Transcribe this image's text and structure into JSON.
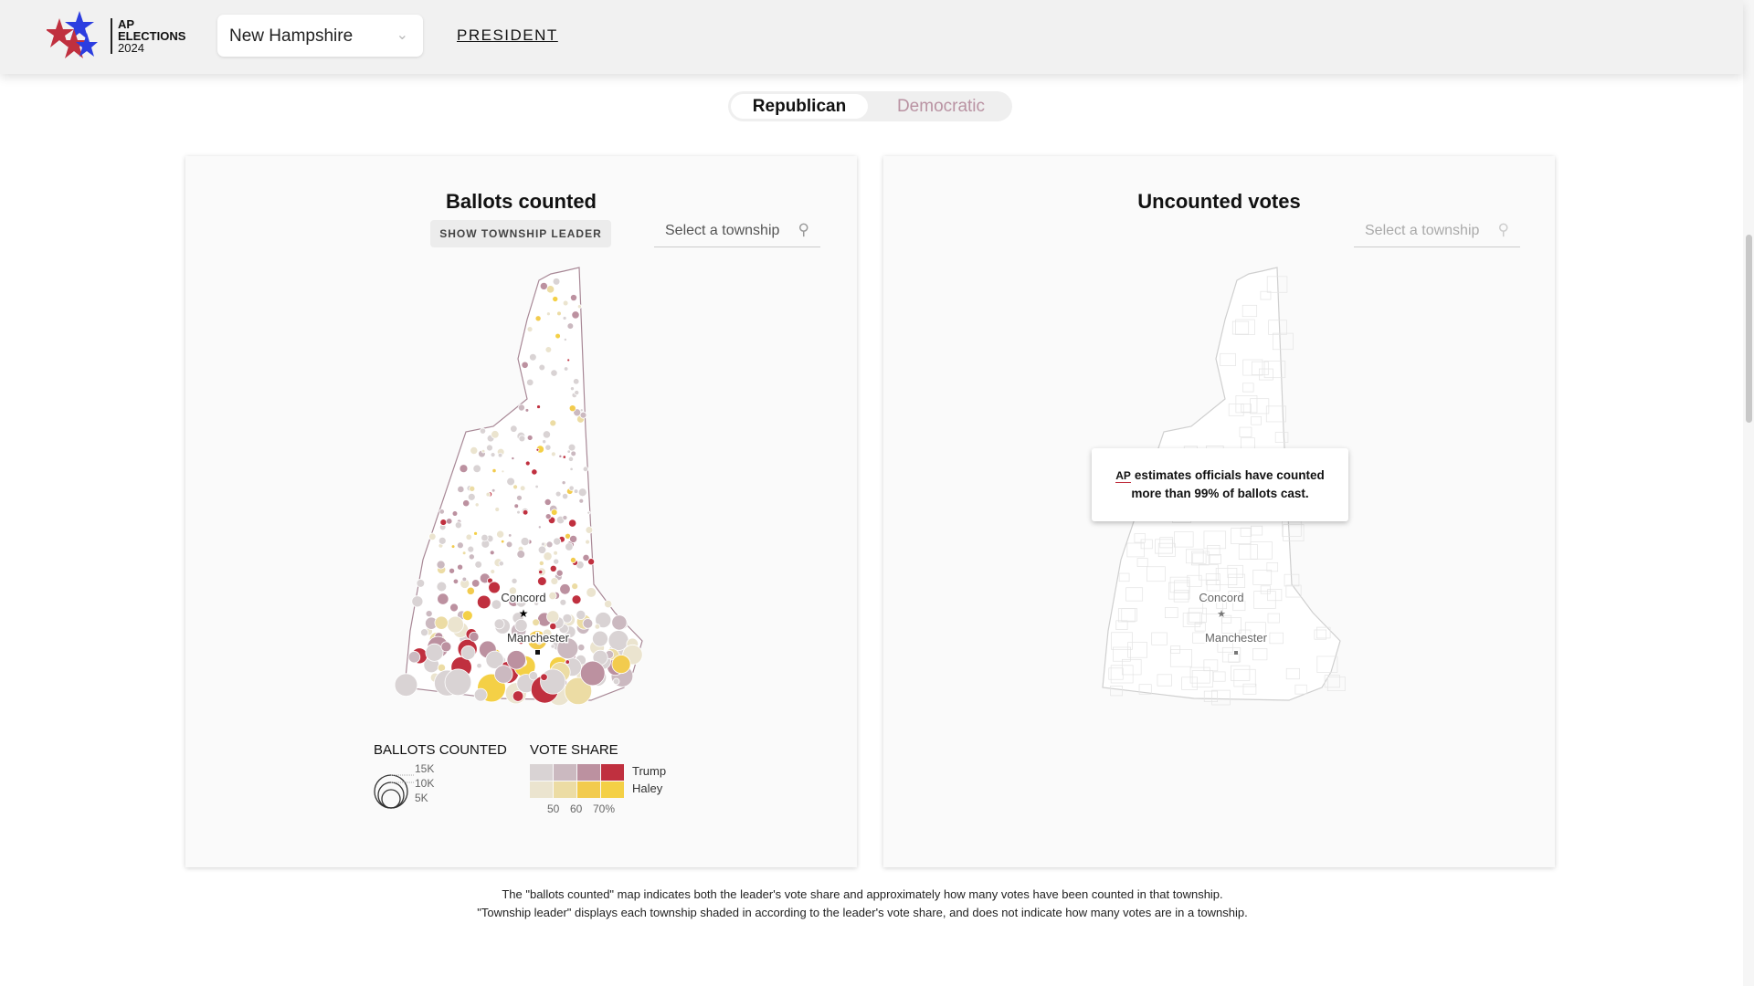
{
  "header": {
    "logo": {
      "line1": "AP",
      "line2": "ELECTIONS",
      "line3": "2024"
    },
    "state_select": "New Hampshire",
    "nav_link": "PRESIDENT"
  },
  "party_toggle": {
    "options": [
      "Republican",
      "Democratic"
    ],
    "selected": "Republican"
  },
  "left_card": {
    "title": "Ballots counted",
    "leader_button": "SHOW TOWNSHIP LEADER",
    "search_placeholder": "Select a township",
    "cities": {
      "capital": "Concord",
      "city": "Manchester"
    },
    "legend": {
      "size_title": "BALLOTS COUNTED",
      "size_levels": [
        "15K",
        "10K",
        "5K"
      ],
      "color_title": "VOTE SHARE",
      "candidates": [
        "Trump",
        "Haley"
      ],
      "ticks": [
        "50",
        "60",
        "70%"
      ],
      "trump_colors": [
        "#d9d3d4",
        "#cbb9c0",
        "#bc91a0",
        "#c0303f"
      ],
      "haley_colors": [
        "#ebe4cf",
        "#ecdca4",
        "#f2cb4e",
        "#f4d046"
      ]
    }
  },
  "right_card": {
    "title": "Uncounted votes",
    "search_placeholder": "Select a township",
    "cities": {
      "capital": "Concord",
      "city": "Manchester"
    },
    "tooltip": {
      "logo": "AP",
      "text": "estimates officials have counted more than 99% of ballots cast."
    }
  },
  "footnote": [
    "The \"ballots counted\" map indicates both the leader's vote share and approximately how many votes have been counted in that township.",
    "\"Township leader\" displays each township shaded in according to the leader's vote share, and does not indicate how many votes are in a township."
  ],
  "colors": {
    "header_bg": "#f1f1f1",
    "trump_accent": "#c0303f",
    "haley_accent": "#f2cb4e",
    "democratic_text": "#b992a2"
  }
}
